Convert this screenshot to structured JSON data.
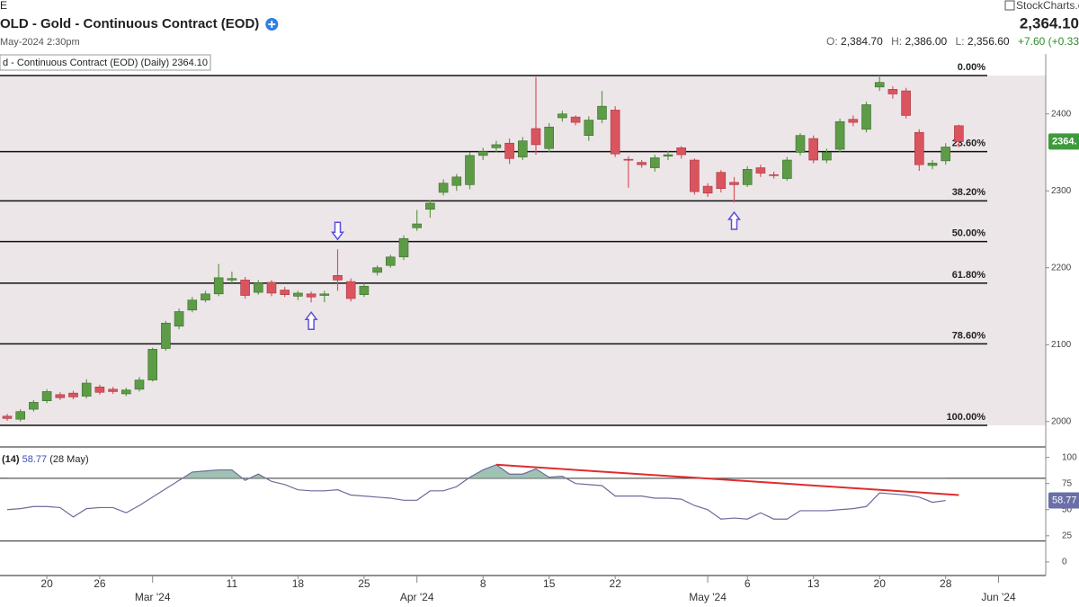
{
  "header": {
    "ticker_fragment": "E",
    "title": "OLD - Gold - Continuous Contract (EOD)",
    "datetime": "May-2024 2:30pm",
    "brand": "StockCharts.c",
    "last": "2,364.10",
    "ohlc": [
      {
        "label": "O:",
        "value": "2,384.70"
      },
      {
        "label": "H:",
        "value": "2,386.00"
      },
      {
        "label": "L:",
        "value": "2,356.60"
      }
    ],
    "change": "+7.60 (+0.33"
  },
  "chart_data": [
    {
      "type": "candlestick",
      "title": "d - Continuous Contract (EOD) (Daily) 2364.10",
      "categories": [
        null,
        null,
        null,
        "20",
        null,
        null,
        null,
        "26",
        null,
        null,
        null,
        "Mar '24",
        null,
        null,
        null,
        null,
        null,
        "11",
        null,
        null,
        null,
        null,
        "18",
        null,
        null,
        null,
        null,
        "25",
        null,
        null,
        null,
        "Apr '24",
        null,
        null,
        null,
        null,
        "8",
        null,
        null,
        null,
        null,
        "15",
        null,
        null,
        null,
        null,
        "22",
        null,
        null,
        null,
        null,
        null,
        null,
        "May '24",
        null,
        null,
        "6",
        null,
        null,
        null,
        null,
        "13",
        null,
        null,
        null,
        null,
        "20",
        null,
        null,
        null,
        null,
        "28",
        null,
        null,
        null,
        "Jun '24"
      ],
      "open": [
        2007,
        2003,
        2016,
        2027,
        2035,
        2037,
        2033,
        2045,
        2042,
        2036,
        2042,
        2054,
        2095,
        2124,
        2145,
        2158,
        2166,
        2184,
        2184,
        2168,
        2181,
        2171,
        2163,
        2166,
        2164,
        2190,
        2182,
        2165,
        2194,
        2203,
        2214,
        2252,
        2276,
        2298,
        2307,
        2308,
        2346,
        2356,
        2362,
        2344,
        2381,
        2355,
        2395,
        2396,
        2372,
        2393,
        2405,
        2341,
        2337,
        2330,
        2345,
        2356,
        2340,
        2306,
        2324,
        2311,
        2308,
        2330,
        2321,
        2316,
        2350,
        2368,
        2340,
        2354,
        2393,
        2380,
        2435,
        2432,
        2430,
        2376,
        2333,
        2339,
        2384.7,
        null,
        null,
        null
      ],
      "high": [
        2010,
        2016,
        2028,
        2042,
        2038,
        2040,
        2055,
        2048,
        2045,
        2044,
        2058,
        2096,
        2131,
        2147,
        2162,
        2170,
        2205,
        2195,
        2188,
        2184,
        2184,
        2175,
        2170,
        2169,
        2170,
        2224,
        2186,
        2180,
        2203,
        2217,
        2242,
        2275,
        2288,
        2315,
        2322,
        2350,
        2356,
        2365,
        2368,
        2370,
        2448,
        2388,
        2404,
        2398,
        2397,
        2430,
        2410,
        2345,
        2340,
        2347,
        2352,
        2358,
        2342,
        2310,
        2327,
        2318,
        2332,
        2334,
        2325,
        2344,
        2375,
        2372,
        2355,
        2394,
        2398,
        2416,
        2450,
        2436,
        2434,
        2380,
        2340,
        2362,
        2386.0,
        null,
        null,
        null
      ],
      "low": [
        2001,
        2000,
        2013,
        2024,
        2028,
        2029,
        2030,
        2035,
        2036,
        2033,
        2039,
        2052,
        2092,
        2120,
        2142,
        2155,
        2163,
        2180,
        2160,
        2165,
        2163,
        2162,
        2158,
        2155,
        2155,
        2170,
        2156,
        2162,
        2190,
        2200,
        2210,
        2248,
        2265,
        2294,
        2300,
        2302,
        2340,
        2350,
        2335,
        2340,
        2347,
        2350,
        2390,
        2385,
        2365,
        2388,
        2344,
        2304,
        2330,
        2325,
        2340,
        2342,
        2295,
        2292,
        2298,
        2285,
        2305,
        2318,
        2316,
        2313,
        2346,
        2336,
        2336,
        2350,
        2384,
        2376,
        2430,
        2420,
        2394,
        2326,
        2328,
        2334,
        2356.6,
        null,
        null,
        null
      ],
      "close": [
        2004,
        2013,
        2025,
        2039,
        2031,
        2032,
        2050,
        2038,
        2039,
        2041,
        2054,
        2094,
        2128,
        2143,
        2158,
        2166,
        2187,
        2186,
        2164,
        2180,
        2167,
        2165,
        2167,
        2162,
        2166,
        2184,
        2160,
        2176,
        2200,
        2214,
        2238,
        2257,
        2284,
        2310,
        2318,
        2346,
        2351,
        2360,
        2342,
        2365,
        2360,
        2383,
        2400,
        2389,
        2392,
        2410,
        2348,
        2340,
        2334,
        2343,
        2347,
        2347,
        2299,
        2297,
        2303,
        2308,
        2328,
        2323,
        2320,
        2340,
        2372,
        2340,
        2350,
        2390,
        2389,
        2412,
        2441,
        2426,
        2398,
        2334,
        2336,
        2357,
        2364.1,
        null,
        null,
        null
      ],
      "up_color": "#5d9b47",
      "down_color": "#d9545e",
      "ylim": [
        1967,
        2478
      ],
      "yticks": [
        2000,
        2100,
        2200,
        2300,
        2400
      ],
      "fib_levels": [
        {
          "value": 2450,
          "label": "0.00%"
        },
        {
          "value": 2351,
          "label": "23.60%"
        },
        {
          "value": 2287,
          "label": "38.20%"
        },
        {
          "value": 2234,
          "label": "50.00%"
        },
        {
          "value": 2180,
          "label": "61.80%"
        },
        {
          "value": 2101,
          "label": "78.60%"
        },
        {
          "value": 1995,
          "label": "100.00%"
        }
      ],
      "fib_fill": "#ede6e9",
      "arrows": [
        {
          "index": 23,
          "dir": "up"
        },
        {
          "index": 25,
          "dir": "down"
        },
        {
          "index": 55,
          "dir": "up"
        }
      ],
      "arrow_color": "#5b4fd8",
      "last_price_label": "2364.",
      "last_price_color": "#3f9a3c"
    },
    {
      "type": "line",
      "title": "(14)",
      "value_label": "58.77",
      "date_label": "(28 May)",
      "values": [
        50,
        51,
        53,
        53,
        52,
        43,
        51,
        52,
        52,
        47,
        54,
        62,
        70,
        78,
        86,
        87,
        88,
        88,
        78,
        84,
        77,
        74,
        69,
        68,
        68,
        69,
        64,
        63,
        62,
        61,
        59,
        59,
        68,
        68,
        72,
        81,
        88,
        93,
        84,
        84,
        89,
        81,
        82,
        75,
        74,
        73,
        63,
        63,
        63,
        61,
        61,
        60,
        54,
        50,
        41,
        42,
        41,
        47,
        41,
        41,
        49,
        49,
        49,
        50,
        51,
        53,
        66,
        65,
        64,
        62,
        57,
        58.77,
        null,
        null,
        null,
        null
      ],
      "color": "#6b6b9c",
      "ylim": [
        -13,
        110
      ],
      "yticks": [
        0,
        25,
        50,
        75,
        100
      ],
      "levels": [
        80,
        20
      ],
      "overbought_fill": "#9fc2b3",
      "trendline": {
        "x": [
          37,
          72
        ],
        "values": [
          93,
          64
        ],
        "color": "#e02c2c"
      },
      "tag_color": "#6a6fa8"
    }
  ]
}
